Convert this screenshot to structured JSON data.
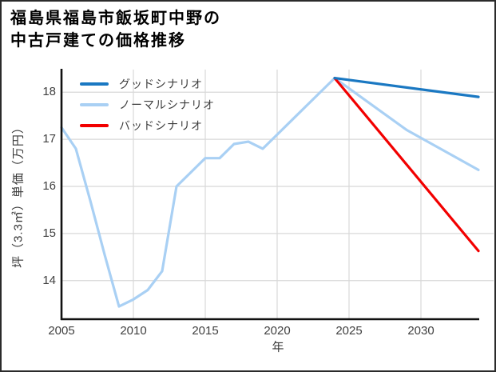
{
  "page": {
    "background": "#ffffff",
    "border_color": "#2b2b2b"
  },
  "title": {
    "line1": "福島県福島市飯坂町中野の",
    "line2": "中古戸建ての価格推移"
  },
  "chart_data": {
    "type": "line",
    "title": "福島県福島市飯坂町中野の中古戸建ての価格推移",
    "xlabel": "年",
    "ylabel": "坪（3.3㎡）単価（万円）",
    "xlim": [
      2005,
      2035
    ],
    "ylim": [
      13.18,
      18.48
    ],
    "x_ticks": [
      2005,
      2010,
      2015,
      2020,
      2025,
      2030
    ],
    "y_ticks": [
      14,
      15,
      16,
      17,
      18
    ],
    "grid": true,
    "grid_color": "#d8d8d8",
    "spine_color": "#111111",
    "tick_label_color": "#404040",
    "legend_position": "upper-left",
    "legend_order": [
      "グッドシナリオ",
      "ノーマルシナリオ",
      "バッドシナリオ"
    ],
    "series": [
      {
        "name": "グッドシナリオ",
        "color": "#1a78c2",
        "x": [
          2024,
          2034
        ],
        "values": [
          18.3,
          17.9
        ]
      },
      {
        "name": "ノーマルシナリオ",
        "color": "#a9d0f4",
        "x": [
          2005,
          2006,
          2007,
          2008,
          2009,
          2010,
          2011,
          2012,
          2013,
          2014,
          2015,
          2016,
          2017,
          2018,
          2019,
          2020,
          2021,
          2022,
          2023,
          2024,
          2029,
          2034
        ],
        "values": [
          17.25,
          16.8,
          15.7,
          14.55,
          13.45,
          13.6,
          13.8,
          14.2,
          16.0,
          16.3,
          16.6,
          16.6,
          16.9,
          16.95,
          16.8,
          17.1,
          17.4,
          17.7,
          18.0,
          18.3,
          17.2,
          16.35
        ]
      },
      {
        "name": "バッドシナリオ",
        "color": "#f20000",
        "x": [
          2024,
          2034
        ],
        "values": [
          18.3,
          14.63
        ]
      }
    ]
  }
}
